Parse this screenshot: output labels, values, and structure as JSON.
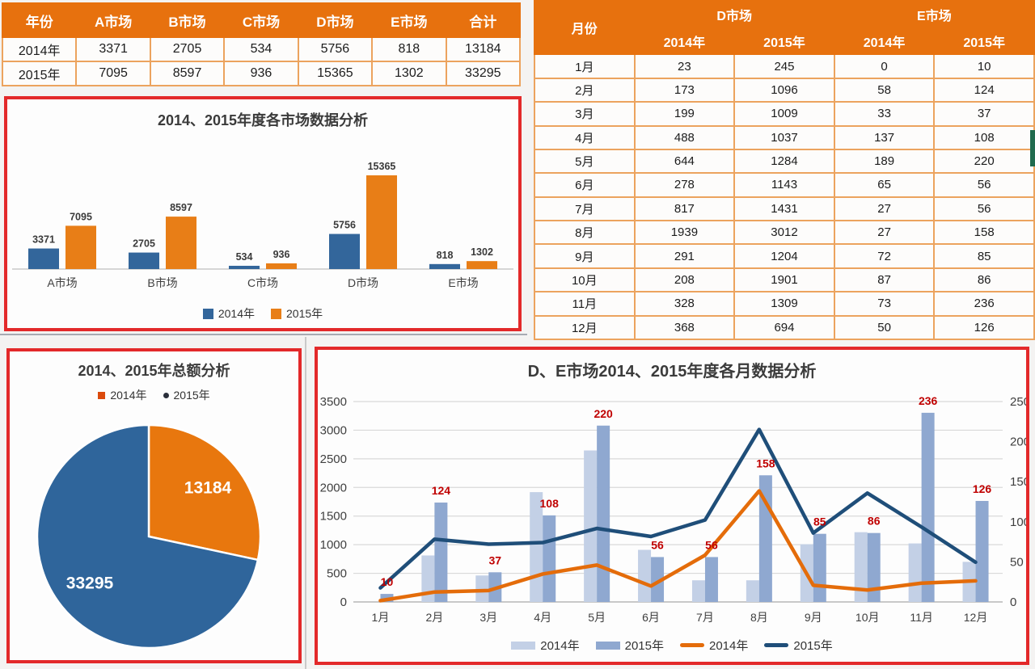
{
  "colors": {
    "header_orange": "#E7710E",
    "table_border_orange": "#ECA35E",
    "red_frame": "#E3292A",
    "bar_2014_blue": "#33669B",
    "bar_2015_orange": "#E87E17",
    "pie_2014_orange": "#E8770E",
    "pie_2015_blue": "#2F659B",
    "combo_bar_2014_light": "#C3D0E6",
    "combo_bar_2015_medium": "#8FA8D0",
    "combo_line_2014_orange": "#E46C0A",
    "combo_line_2015_navy": "#1F4E79",
    "data_label_red": "#C00000",
    "data_label_black": "#3A3A3A",
    "green_strip": "#206B4E"
  },
  "summary_table": {
    "headers": [
      "年份",
      "A市场",
      "B市场",
      "C市场",
      "D市场",
      "E市场",
      "合计"
    ],
    "rows": [
      [
        "2014年",
        "3371",
        "2705",
        "534",
        "5756",
        "818",
        "13184"
      ],
      [
        "2015年",
        "7095",
        "8597",
        "936",
        "15365",
        "1302",
        "33295"
      ]
    ]
  },
  "monthly_table": {
    "month_header": "月份",
    "groups": [
      "D市场",
      "E市场"
    ],
    "sub_headers": [
      "2014年",
      "2015年",
      "2014年",
      "2015年"
    ],
    "rows": [
      [
        "1月",
        "23",
        "245",
        "0",
        "10"
      ],
      [
        "2月",
        "173",
        "1096",
        "58",
        "124"
      ],
      [
        "3月",
        "199",
        "1009",
        "33",
        "37"
      ],
      [
        "4月",
        "488",
        "1037",
        "137",
        "108"
      ],
      [
        "5月",
        "644",
        "1284",
        "189",
        "220"
      ],
      [
        "6月",
        "278",
        "1143",
        "65",
        "56"
      ],
      [
        "7月",
        "817",
        "1431",
        "27",
        "56"
      ],
      [
        "8月",
        "1939",
        "3012",
        "27",
        "158"
      ],
      [
        "9月",
        "291",
        "1204",
        "72",
        "85"
      ],
      [
        "10月",
        "208",
        "1901",
        "87",
        "86"
      ],
      [
        "11月",
        "328",
        "1309",
        "73",
        "236"
      ],
      [
        "12月",
        "368",
        "694",
        "50",
        "126"
      ]
    ]
  },
  "chart_data": [
    {
      "type": "bar",
      "title": "2014、2015年度各市场数据分析",
      "categories": [
        "A市场",
        "B市场",
        "C市场",
        "D市场",
        "E市场"
      ],
      "series": [
        {
          "name": "2014年",
          "color": "#33669B",
          "values": [
            3371,
            2705,
            534,
            5756,
            818
          ]
        },
        {
          "name": "2015年",
          "color": "#E87E17",
          "values": [
            7095,
            8597,
            936,
            15365,
            1302
          ]
        }
      ],
      "ylim": [
        0,
        16000
      ],
      "grid": false,
      "data_labels": true,
      "legend_position": "bottom"
    },
    {
      "type": "pie",
      "title": "2014、2015年总额分析",
      "slices": [
        {
          "name": "2014年",
          "value": 13184,
          "color": "#E8770E"
        },
        {
          "name": "2015年",
          "value": 33295,
          "color": "#2F659B"
        }
      ],
      "start_angle_deg": 0,
      "direction": "clockwise",
      "data_labels": true,
      "legend_position": "top"
    },
    {
      "type": "combo",
      "title": "D、E市场2014、2015年度各月数据分析",
      "categories": [
        "1月",
        "2月",
        "3月",
        "4月",
        "5月",
        "6月",
        "7月",
        "8月",
        "9月",
        "10月",
        "11月",
        "12月"
      ],
      "bars": [
        {
          "name": "2014年",
          "axis": "right",
          "color": "#C3D0E6",
          "values": [
            0,
            58,
            33,
            137,
            189,
            65,
            27,
            27,
            72,
            87,
            73,
            50
          ]
        },
        {
          "name": "2015年",
          "axis": "right",
          "color": "#8FA8D0",
          "data_labels": true,
          "label_color": "#C00000",
          "values": [
            10,
            124,
            37,
            108,
            220,
            56,
            56,
            158,
            85,
            86,
            236,
            126
          ]
        }
      ],
      "lines": [
        {
          "name": "2014年",
          "axis": "left",
          "color": "#E46C0A",
          "values": [
            23,
            173,
            199,
            488,
            644,
            278,
            817,
            1939,
            291,
            208,
            328,
            368
          ]
        },
        {
          "name": "2015年",
          "axis": "left",
          "color": "#1F4E79",
          "values": [
            245,
            1096,
            1009,
            1037,
            1284,
            1143,
            1431,
            3012,
            1204,
            1901,
            1309,
            694
          ]
        }
      ],
      "left_axis": {
        "min": 0,
        "max": 3500,
        "step": 500
      },
      "right_axis": {
        "min": 0,
        "max": 250,
        "step": 50
      },
      "grid": "horizontal",
      "legend_position": "bottom"
    }
  ]
}
